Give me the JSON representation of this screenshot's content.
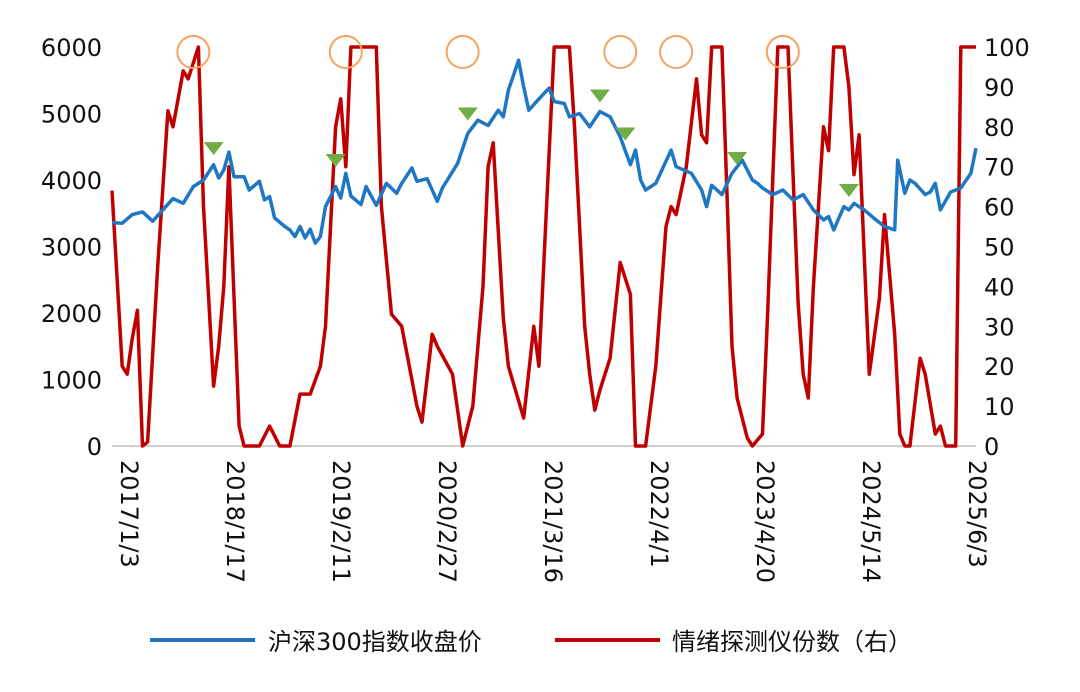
{
  "chart_data": {
    "type": "line",
    "title": "",
    "x_tick_labels": [
      "2017/1/3",
      "2018/1/17",
      "2019/2/11",
      "2020/2/27",
      "2021/3/16",
      "2022/4/1",
      "2023/4/20",
      "2024/5/14",
      "2025/6/3"
    ],
    "x_range": [
      0,
      8.5
    ],
    "y_left_ticks": [
      "0",
      "1000",
      "2000",
      "3000",
      "4000",
      "5000",
      "6000"
    ],
    "y_right_ticks": [
      "0",
      "10",
      "20",
      "30",
      "40",
      "50",
      "60",
      "70",
      "80",
      "90",
      "100"
    ],
    "ylim_left": [
      0,
      6000
    ],
    "ylim_right": [
      0,
      100
    ],
    "legend_position": "bottom",
    "series": [
      {
        "name": "沪深300指数收盘价",
        "axis": "left",
        "color": "#1f77c4",
        "points": [
          [
            0,
            3360
          ],
          [
            0.1,
            3350
          ],
          [
            0.2,
            3480
          ],
          [
            0.3,
            3520
          ],
          [
            0.4,
            3380
          ],
          [
            0.5,
            3550
          ],
          [
            0.6,
            3720
          ],
          [
            0.7,
            3650
          ],
          [
            0.8,
            3900
          ],
          [
            0.9,
            4000
          ],
          [
            1.0,
            4230
          ],
          [
            1.05,
            4030
          ],
          [
            1.1,
            4150
          ],
          [
            1.15,
            4420
          ],
          [
            1.2,
            4050
          ],
          [
            1.3,
            4050
          ],
          [
            1.35,
            3850
          ],
          [
            1.45,
            3980
          ],
          [
            1.5,
            3700
          ],
          [
            1.55,
            3750
          ],
          [
            1.6,
            3430
          ],
          [
            1.7,
            3300
          ],
          [
            1.75,
            3250
          ],
          [
            1.8,
            3150
          ],
          [
            1.85,
            3300
          ],
          [
            1.9,
            3130
          ],
          [
            1.95,
            3260
          ],
          [
            2.0,
            3050
          ],
          [
            2.05,
            3150
          ],
          [
            2.1,
            3600
          ],
          [
            2.2,
            3900
          ],
          [
            2.25,
            3730
          ],
          [
            2.3,
            4100
          ],
          [
            2.35,
            3760
          ],
          [
            2.45,
            3630
          ],
          [
            2.5,
            3900
          ],
          [
            2.6,
            3620
          ],
          [
            2.7,
            3950
          ],
          [
            2.8,
            3800
          ],
          [
            2.85,
            3950
          ],
          [
            2.95,
            4180
          ],
          [
            3.0,
            3980
          ],
          [
            3.1,
            4020
          ],
          [
            3.2,
            3680
          ],
          [
            3.25,
            3880
          ],
          [
            3.4,
            4250
          ],
          [
            3.5,
            4700
          ],
          [
            3.6,
            4900
          ],
          [
            3.7,
            4820
          ],
          [
            3.8,
            5050
          ],
          [
            3.85,
            4950
          ],
          [
            3.9,
            5350
          ],
          [
            4.0,
            5800
          ],
          [
            4.05,
            5400
          ],
          [
            4.1,
            5050
          ],
          [
            4.2,
            5220
          ],
          [
            4.3,
            5380
          ],
          [
            4.35,
            5180
          ],
          [
            4.45,
            5150
          ],
          [
            4.5,
            4950
          ],
          [
            4.6,
            5000
          ],
          [
            4.7,
            4800
          ],
          [
            4.8,
            5030
          ],
          [
            4.9,
            4950
          ],
          [
            5.0,
            4650
          ],
          [
            5.1,
            4230
          ],
          [
            5.15,
            4450
          ],
          [
            5.2,
            4000
          ],
          [
            5.25,
            3850
          ],
          [
            5.35,
            3950
          ],
          [
            5.5,
            4450
          ],
          [
            5.55,
            4200
          ],
          [
            5.7,
            4100
          ],
          [
            5.8,
            3850
          ],
          [
            5.85,
            3600
          ],
          [
            5.9,
            3920
          ],
          [
            6.0,
            3780
          ],
          [
            6.1,
            4100
          ],
          [
            6.2,
            4300
          ],
          [
            6.3,
            4000
          ],
          [
            6.35,
            3950
          ],
          [
            6.4,
            3880
          ],
          [
            6.5,
            3780
          ],
          [
            6.6,
            3850
          ],
          [
            6.7,
            3700
          ],
          [
            6.8,
            3780
          ],
          [
            6.9,
            3550
          ],
          [
            7.0,
            3400
          ],
          [
            7.05,
            3450
          ],
          [
            7.1,
            3250
          ],
          [
            7.2,
            3600
          ],
          [
            7.25,
            3550
          ],
          [
            7.3,
            3650
          ],
          [
            7.4,
            3550
          ],
          [
            7.5,
            3420
          ],
          [
            7.6,
            3300
          ],
          [
            7.7,
            3250
          ],
          [
            7.73,
            4300
          ],
          [
            7.8,
            3800
          ],
          [
            7.85,
            4000
          ],
          [
            7.9,
            3950
          ],
          [
            8.0,
            3780
          ],
          [
            8.05,
            3820
          ],
          [
            8.1,
            3950
          ],
          [
            8.15,
            3550
          ],
          [
            8.25,
            3820
          ],
          [
            8.35,
            3880
          ],
          [
            8.45,
            4100
          ],
          [
            8.5,
            4480
          ]
        ]
      },
      {
        "name": "情绪探测仪份数（右）",
        "axis": "right",
        "color": "#c00000",
        "points": [
          [
            0,
            64
          ],
          [
            0.1,
            20
          ],
          [
            0.15,
            18
          ],
          [
            0.2,
            27
          ],
          [
            0.25,
            34
          ],
          [
            0.3,
            0
          ],
          [
            0.35,
            1
          ],
          [
            0.45,
            45
          ],
          [
            0.55,
            84
          ],
          [
            0.6,
            80
          ],
          [
            0.7,
            94
          ],
          [
            0.75,
            92
          ],
          [
            0.85,
            100
          ],
          [
            0.9,
            60
          ],
          [
            1.0,
            15
          ],
          [
            1.05,
            25
          ],
          [
            1.1,
            40
          ],
          [
            1.15,
            70
          ],
          [
            1.25,
            5
          ],
          [
            1.3,
            0
          ],
          [
            1.45,
            0
          ],
          [
            1.55,
            5
          ],
          [
            1.65,
            0
          ],
          [
            1.75,
            0
          ],
          [
            1.85,
            13
          ],
          [
            1.95,
            13
          ],
          [
            2.05,
            20
          ],
          [
            2.1,
            30
          ],
          [
            2.2,
            80
          ],
          [
            2.25,
            87
          ],
          [
            2.3,
            70
          ],
          [
            2.35,
            100
          ],
          [
            2.5,
            100
          ],
          [
            2.6,
            100
          ],
          [
            2.65,
            60
          ],
          [
            2.75,
            33
          ],
          [
            2.85,
            30
          ],
          [
            3.0,
            10
          ],
          [
            3.05,
            6
          ],
          [
            3.15,
            28
          ],
          [
            3.2,
            25
          ],
          [
            3.35,
            18
          ],
          [
            3.45,
            0
          ],
          [
            3.55,
            10
          ],
          [
            3.65,
            40
          ],
          [
            3.7,
            70
          ],
          [
            3.75,
            76
          ],
          [
            3.85,
            32
          ],
          [
            3.9,
            20
          ],
          [
            4.05,
            7
          ],
          [
            4.15,
            30
          ],
          [
            4.2,
            20
          ],
          [
            4.35,
            100
          ],
          [
            4.5,
            100
          ],
          [
            4.55,
            80
          ],
          [
            4.65,
            30
          ],
          [
            4.7,
            18
          ],
          [
            4.75,
            9
          ],
          [
            4.8,
            14
          ],
          [
            4.9,
            22
          ],
          [
            5.0,
            46
          ],
          [
            5.05,
            42
          ],
          [
            5.1,
            38
          ],
          [
            5.15,
            0
          ],
          [
            5.25,
            0
          ],
          [
            5.35,
            20
          ],
          [
            5.45,
            55
          ],
          [
            5.5,
            60
          ],
          [
            5.55,
            58
          ],
          [
            5.65,
            70
          ],
          [
            5.75,
            92
          ],
          [
            5.8,
            78
          ],
          [
            5.85,
            76
          ],
          [
            5.9,
            100
          ],
          [
            6.0,
            100
          ],
          [
            6.05,
            63
          ],
          [
            6.1,
            25
          ],
          [
            6.15,
            12
          ],
          [
            6.25,
            2
          ],
          [
            6.3,
            0
          ],
          [
            6.4,
            3
          ],
          [
            6.45,
            33
          ],
          [
            6.55,
            100
          ],
          [
            6.65,
            100
          ],
          [
            6.75,
            36
          ],
          [
            6.8,
            18
          ],
          [
            6.85,
            12
          ],
          [
            6.9,
            40
          ],
          [
            7.0,
            80
          ],
          [
            7.05,
            74
          ],
          [
            7.1,
            100
          ],
          [
            7.2,
            100
          ],
          [
            7.25,
            90
          ],
          [
            7.3,
            68
          ],
          [
            7.35,
            78
          ],
          [
            7.45,
            18
          ],
          [
            7.55,
            37
          ],
          [
            7.6,
            58
          ],
          [
            7.7,
            28
          ],
          [
            7.75,
            3
          ],
          [
            7.8,
            0
          ],
          [
            7.85,
            0
          ],
          [
            7.95,
            22
          ],
          [
            8.0,
            18
          ],
          [
            8.1,
            3
          ],
          [
            8.15,
            5
          ],
          [
            8.2,
            0
          ],
          [
            8.3,
            0
          ],
          [
            8.35,
            100
          ],
          [
            8.45,
            100
          ],
          [
            8.5,
            100
          ]
        ]
      }
    ],
    "markers": [
      {
        "type": "circle",
        "color": "#f4a460",
        "x": [
          0.8,
          2.3,
          3.45,
          5.0,
          5.55,
          6.6
        ]
      },
      {
        "type": "triangle-down",
        "color": "#70ad47",
        "points": [
          [
            1.0,
            4480
          ],
          [
            2.2,
            4300
          ],
          [
            3.5,
            5000
          ],
          [
            4.8,
            5270
          ],
          [
            5.05,
            4700
          ],
          [
            6.15,
            4330
          ],
          [
            7.25,
            3850
          ]
        ]
      }
    ]
  }
}
